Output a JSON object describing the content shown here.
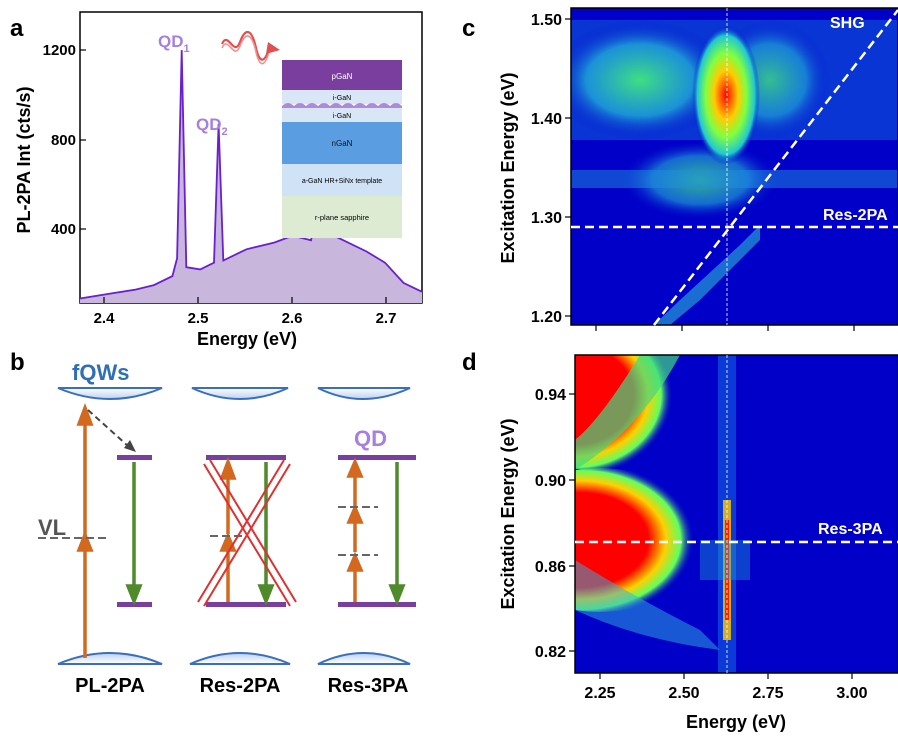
{
  "panels": {
    "a": "a",
    "b": "b",
    "c": "c",
    "d": "d"
  },
  "colors": {
    "spectrum": "#6a1fd0",
    "spectrum_fill": "#c9b6dc",
    "qd_label": "#a77fe0",
    "fqw_label": "#2f6fb6",
    "excite_arrow": "#d2691e",
    "emit_arrow": "#4f8a2b",
    "level": "#7a3f9e",
    "cross": "#e03030",
    "map_bg": "#0000c8"
  },
  "panel_a": {
    "ylabel": "PL-2PA Int (cts/s)",
    "xlabel": "Energy (eV)",
    "qd1": "QD",
    "qd1_sub": "1",
    "qd2": "QD",
    "qd2_sub": "2",
    "inset_layers": [
      "pGaN",
      "i-GaN",
      "i-GaN",
      "nGaN",
      "a-GaN HR+SiNx template",
      "r-plane sapphire"
    ]
  },
  "panel_b": {
    "fqws": "fQWs",
    "vl": "VL",
    "qd": "QD",
    "labels": [
      "PL-2PA",
      "Res-2PA",
      "Res-3PA"
    ]
  },
  "panel_c": {
    "ylabel": "Excitation Energy (eV)",
    "shg": "SHG",
    "res": "Res-2PA"
  },
  "panel_d": {
    "ylabel": "Excitation Energy (eV)",
    "xlabel": "Energy (eV)",
    "res": "Res-3PA"
  },
  "chart_data": [
    {
      "type": "line",
      "panel": "a",
      "xlabel": "Energy (eV)",
      "ylabel": "PL-2PA Int (cts/s)",
      "xlim": [
        2.37,
        2.74
      ],
      "ylim": [
        0,
        1300
      ],
      "x_ticks": [
        "2.4",
        "2.5",
        "2.6",
        "2.7"
      ],
      "y_ticks": [
        "400",
        "800",
        "1200"
      ],
      "series": [
        {
          "x": [
            2.37,
            2.4,
            2.43,
            2.45,
            2.47,
            2.475,
            2.48,
            2.485,
            2.5,
            2.515,
            2.52,
            2.525,
            2.55,
            2.58,
            2.6,
            2.62,
            2.625,
            2.63,
            2.65,
            2.68,
            2.7,
            2.72,
            2.74
          ],
          "y": [
            20,
            40,
            60,
            80,
            120,
            200,
            1130,
            160,
            150,
            180,
            800,
            190,
            240,
            270,
            300,
            280,
            430,
            330,
            290,
            230,
            180,
            90,
            50
          ]
        }
      ],
      "annotations": [
        "QD1",
        "QD2"
      ]
    },
    {
      "type": "heatmap",
      "panel": "c",
      "ylabel": "Excitation Energy (eV)",
      "ylim": [
        1.19,
        1.51
      ],
      "y_ticks": [
        "1.20",
        "1.30",
        "1.40",
        "1.50"
      ],
      "xlim": [
        2.2,
        3.1
      ],
      "lines": [
        {
          "name": "SHG",
          "type": "diagonal"
        },
        {
          "name": "Res-2PA",
          "y": 1.29
        }
      ],
      "hot_spot": {
        "x": 2.62,
        "y_range": [
          1.37,
          1.49
        ]
      }
    },
    {
      "type": "heatmap",
      "panel": "d",
      "xlabel": "Energy (eV)",
      "ylabel": "Excitation Energy (eV)",
      "xlim": [
        2.2,
        3.1
      ],
      "ylim": [
        0.81,
        0.96
      ],
      "x_ticks": [
        "2.25",
        "2.50",
        "2.75",
        "3.00"
      ],
      "y_ticks": [
        "0.82",
        "0.86",
        "0.90",
        "0.94"
      ],
      "lines": [
        {
          "name": "Res-3PA",
          "y": 0.87
        }
      ],
      "hot_spot": {
        "x": 2.62,
        "y_range": [
          0.83,
          0.89
        ]
      }
    }
  ]
}
